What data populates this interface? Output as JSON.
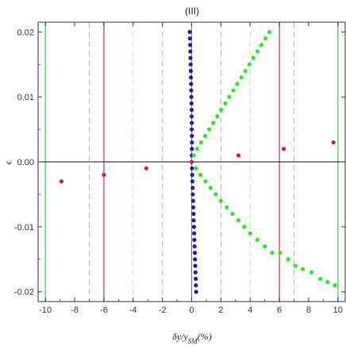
{
  "chart_data": {
    "type": "scatter",
    "title": "(III)",
    "xlabel": "δy/y_SM(%)",
    "ylabel": "ϵ",
    "xlim": [
      -10.5,
      10.5
    ],
    "ylim": [
      -0.0215,
      0.0215
    ],
    "x_ticks": [
      -10,
      -8,
      -6,
      -4,
      -2,
      0,
      2,
      4,
      6,
      8,
      10
    ],
    "x_tick_labels": [
      "-10",
      "-8",
      "-6",
      "-4",
      "-2",
      "0",
      "2",
      "4",
      "6",
      "8",
      "10"
    ],
    "y_ticks": [
      -0.02,
      -0.01,
      0.0,
      0.01,
      0.02
    ],
    "y_tick_labels": [
      "-0.02",
      "-0.01",
      "0.00",
      "0.01",
      "0.02"
    ],
    "grid": false,
    "vertical_lines": [
      {
        "x": -10,
        "color": "#66dd66",
        "style": "solid"
      },
      {
        "x": 10,
        "color": "#66dd66",
        "style": "solid"
      },
      {
        "x": -6,
        "color": "#e06666",
        "style": "solid"
      },
      {
        "x": 6,
        "color": "#e06666",
        "style": "solid"
      },
      {
        "x": -7,
        "color": "#f0a0a0",
        "style": "dashed"
      },
      {
        "x": 7,
        "color": "#f0a0a0",
        "style": "dashed"
      },
      {
        "x": -4,
        "color": "#a8eea8",
        "style": "dashed"
      },
      {
        "x": 4,
        "color": "#a8eea8",
        "style": "dashed"
      },
      {
        "x": -2,
        "color": "#a8a8ee",
        "style": "dashed"
      },
      {
        "x": 2,
        "color": "#a8a8ee",
        "style": "dashed"
      }
    ],
    "series": [
      {
        "color": "#1a1acc",
        "points": [
          [
            -0.13,
            0.02
          ],
          [
            -0.12,
            0.019
          ],
          [
            -0.1,
            0.018
          ],
          [
            -0.09,
            0.017
          ],
          [
            -0.08,
            0.016
          ],
          [
            -0.07,
            0.015
          ],
          [
            -0.06,
            0.014
          ],
          [
            -0.05,
            0.013
          ],
          [
            -0.04,
            0.012
          ],
          [
            -0.03,
            0.011
          ],
          [
            -0.02,
            0.01
          ],
          [
            -0.01,
            0.009
          ],
          [
            0.0,
            0.008
          ],
          [
            0.0,
            0.007
          ],
          [
            0.01,
            0.006
          ],
          [
            0.01,
            0.005
          ],
          [
            0.02,
            0.004
          ],
          [
            0.02,
            0.003
          ],
          [
            0.02,
            0.002
          ],
          [
            0.01,
            0.001
          ],
          [
            0.0,
            0.0
          ],
          [
            0.02,
            -0.001
          ],
          [
            0.04,
            -0.002
          ],
          [
            0.05,
            -0.003
          ],
          [
            0.07,
            -0.004
          ],
          [
            0.08,
            -0.005
          ],
          [
            0.1,
            -0.006
          ],
          [
            0.11,
            -0.007
          ],
          [
            0.13,
            -0.008
          ],
          [
            0.14,
            -0.009
          ],
          [
            0.16,
            -0.01
          ],
          [
            0.17,
            -0.011
          ],
          [
            0.19,
            -0.012
          ],
          [
            0.2,
            -0.013
          ],
          [
            0.22,
            -0.014
          ],
          [
            0.23,
            -0.015
          ],
          [
            0.25,
            -0.016
          ],
          [
            0.26,
            -0.017
          ],
          [
            0.28,
            -0.018
          ],
          [
            0.29,
            -0.019
          ],
          [
            0.31,
            -0.02
          ]
        ]
      },
      {
        "color": "#22ee22",
        "points": [
          [
            0.0,
            0.0
          ],
          [
            0.15,
            0.001
          ],
          [
            0.38,
            0.002
          ],
          [
            0.65,
            0.003
          ],
          [
            0.92,
            0.004
          ],
          [
            1.2,
            0.005
          ],
          [
            1.48,
            0.006
          ],
          [
            1.75,
            0.007
          ],
          [
            2.02,
            0.008
          ],
          [
            2.3,
            0.009
          ],
          [
            2.57,
            0.01
          ],
          [
            2.85,
            0.011
          ],
          [
            3.12,
            0.012
          ],
          [
            3.4,
            0.013
          ],
          [
            3.67,
            0.014
          ],
          [
            3.95,
            0.015
          ],
          [
            4.22,
            0.016
          ],
          [
            4.5,
            0.017
          ],
          [
            4.77,
            0.018
          ],
          [
            5.05,
            0.019
          ],
          [
            5.32,
            0.02
          ],
          [
            0.3,
            -0.001
          ],
          [
            0.6,
            -0.002
          ],
          [
            0.95,
            -0.003
          ],
          [
            1.3,
            -0.004
          ],
          [
            1.65,
            -0.005
          ],
          [
            2.0,
            -0.006
          ],
          [
            2.4,
            -0.007
          ],
          [
            2.8,
            -0.008
          ],
          [
            3.2,
            -0.009
          ],
          [
            3.6,
            -0.01
          ],
          [
            4.0,
            -0.011
          ],
          [
            4.5,
            -0.012
          ],
          [
            5.0,
            -0.013
          ],
          [
            5.5,
            -0.014
          ],
          [
            6.05,
            -0.014
          ],
          [
            6.6,
            -0.015
          ],
          [
            7.1,
            -0.016
          ],
          [
            7.6,
            -0.0165
          ],
          [
            8.2,
            -0.017
          ],
          [
            8.8,
            -0.018
          ],
          [
            9.3,
            -0.0185
          ],
          [
            9.8,
            -0.019
          ]
        ]
      },
      {
        "color": "#dd2222",
        "points": [
          [
            -8.9,
            -0.003
          ],
          [
            -6.0,
            -0.002
          ],
          [
            -3.1,
            -0.001
          ],
          [
            0.0,
            0.0
          ],
          [
            3.2,
            0.001
          ],
          [
            6.3,
            0.002
          ],
          [
            9.7,
            0.003
          ]
        ]
      }
    ]
  }
}
